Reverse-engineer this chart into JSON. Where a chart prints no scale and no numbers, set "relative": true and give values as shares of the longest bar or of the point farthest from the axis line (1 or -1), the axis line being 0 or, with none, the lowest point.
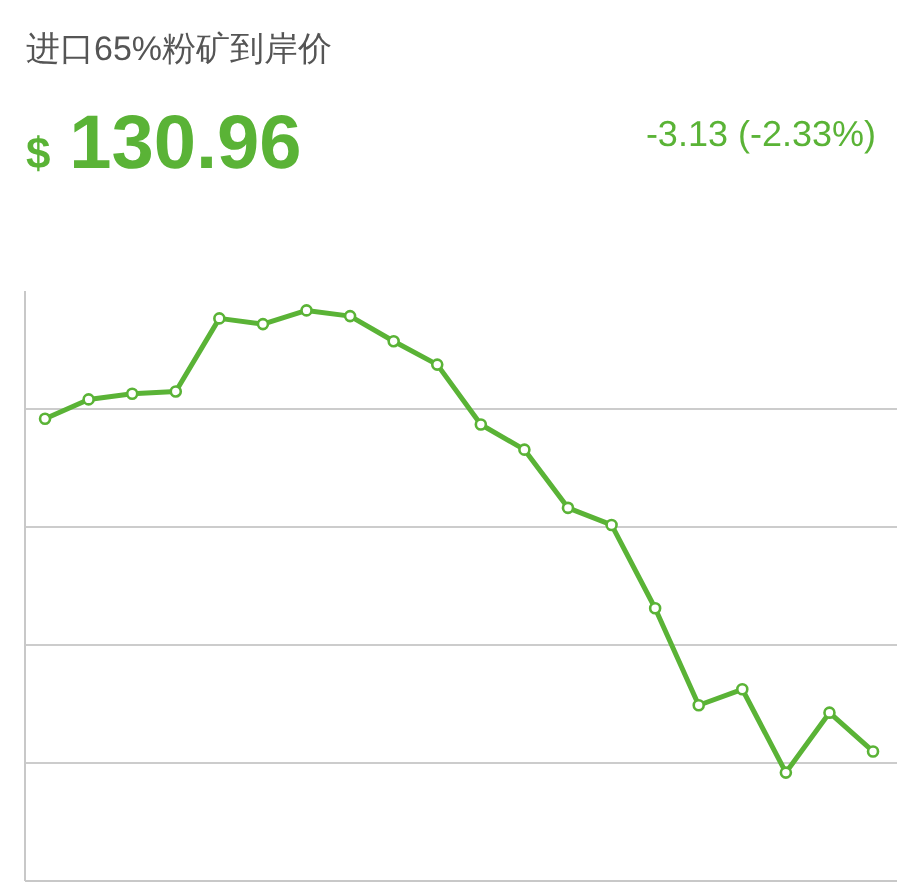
{
  "chart_data": {
    "type": "line",
    "title": "进口65%粉矿到岸价",
    "subtitle": "$ 130.96",
    "annotations": [
      "-3.13 (-2.33%)"
    ],
    "categories": [
      null,
      null,
      null,
      null,
      null,
      null,
      null,
      null,
      null,
      null,
      null,
      null,
      null,
      null,
      null,
      null,
      null,
      null,
      null,
      null
    ],
    "relative": true,
    "color": "#5ab336",
    "marker": "circle",
    "line_style": "solid",
    "grid": "y",
    "values": [
      0.81,
      0.844,
      0.854,
      0.858,
      0.986,
      0.976,
      1,
      0.99,
      0.946,
      0.905,
      0.8,
      0.756,
      0.654,
      0.624,
      0.478,
      0.308,
      0.336,
      0.19,
      0.295,
      0.227
    ]
  }
}
